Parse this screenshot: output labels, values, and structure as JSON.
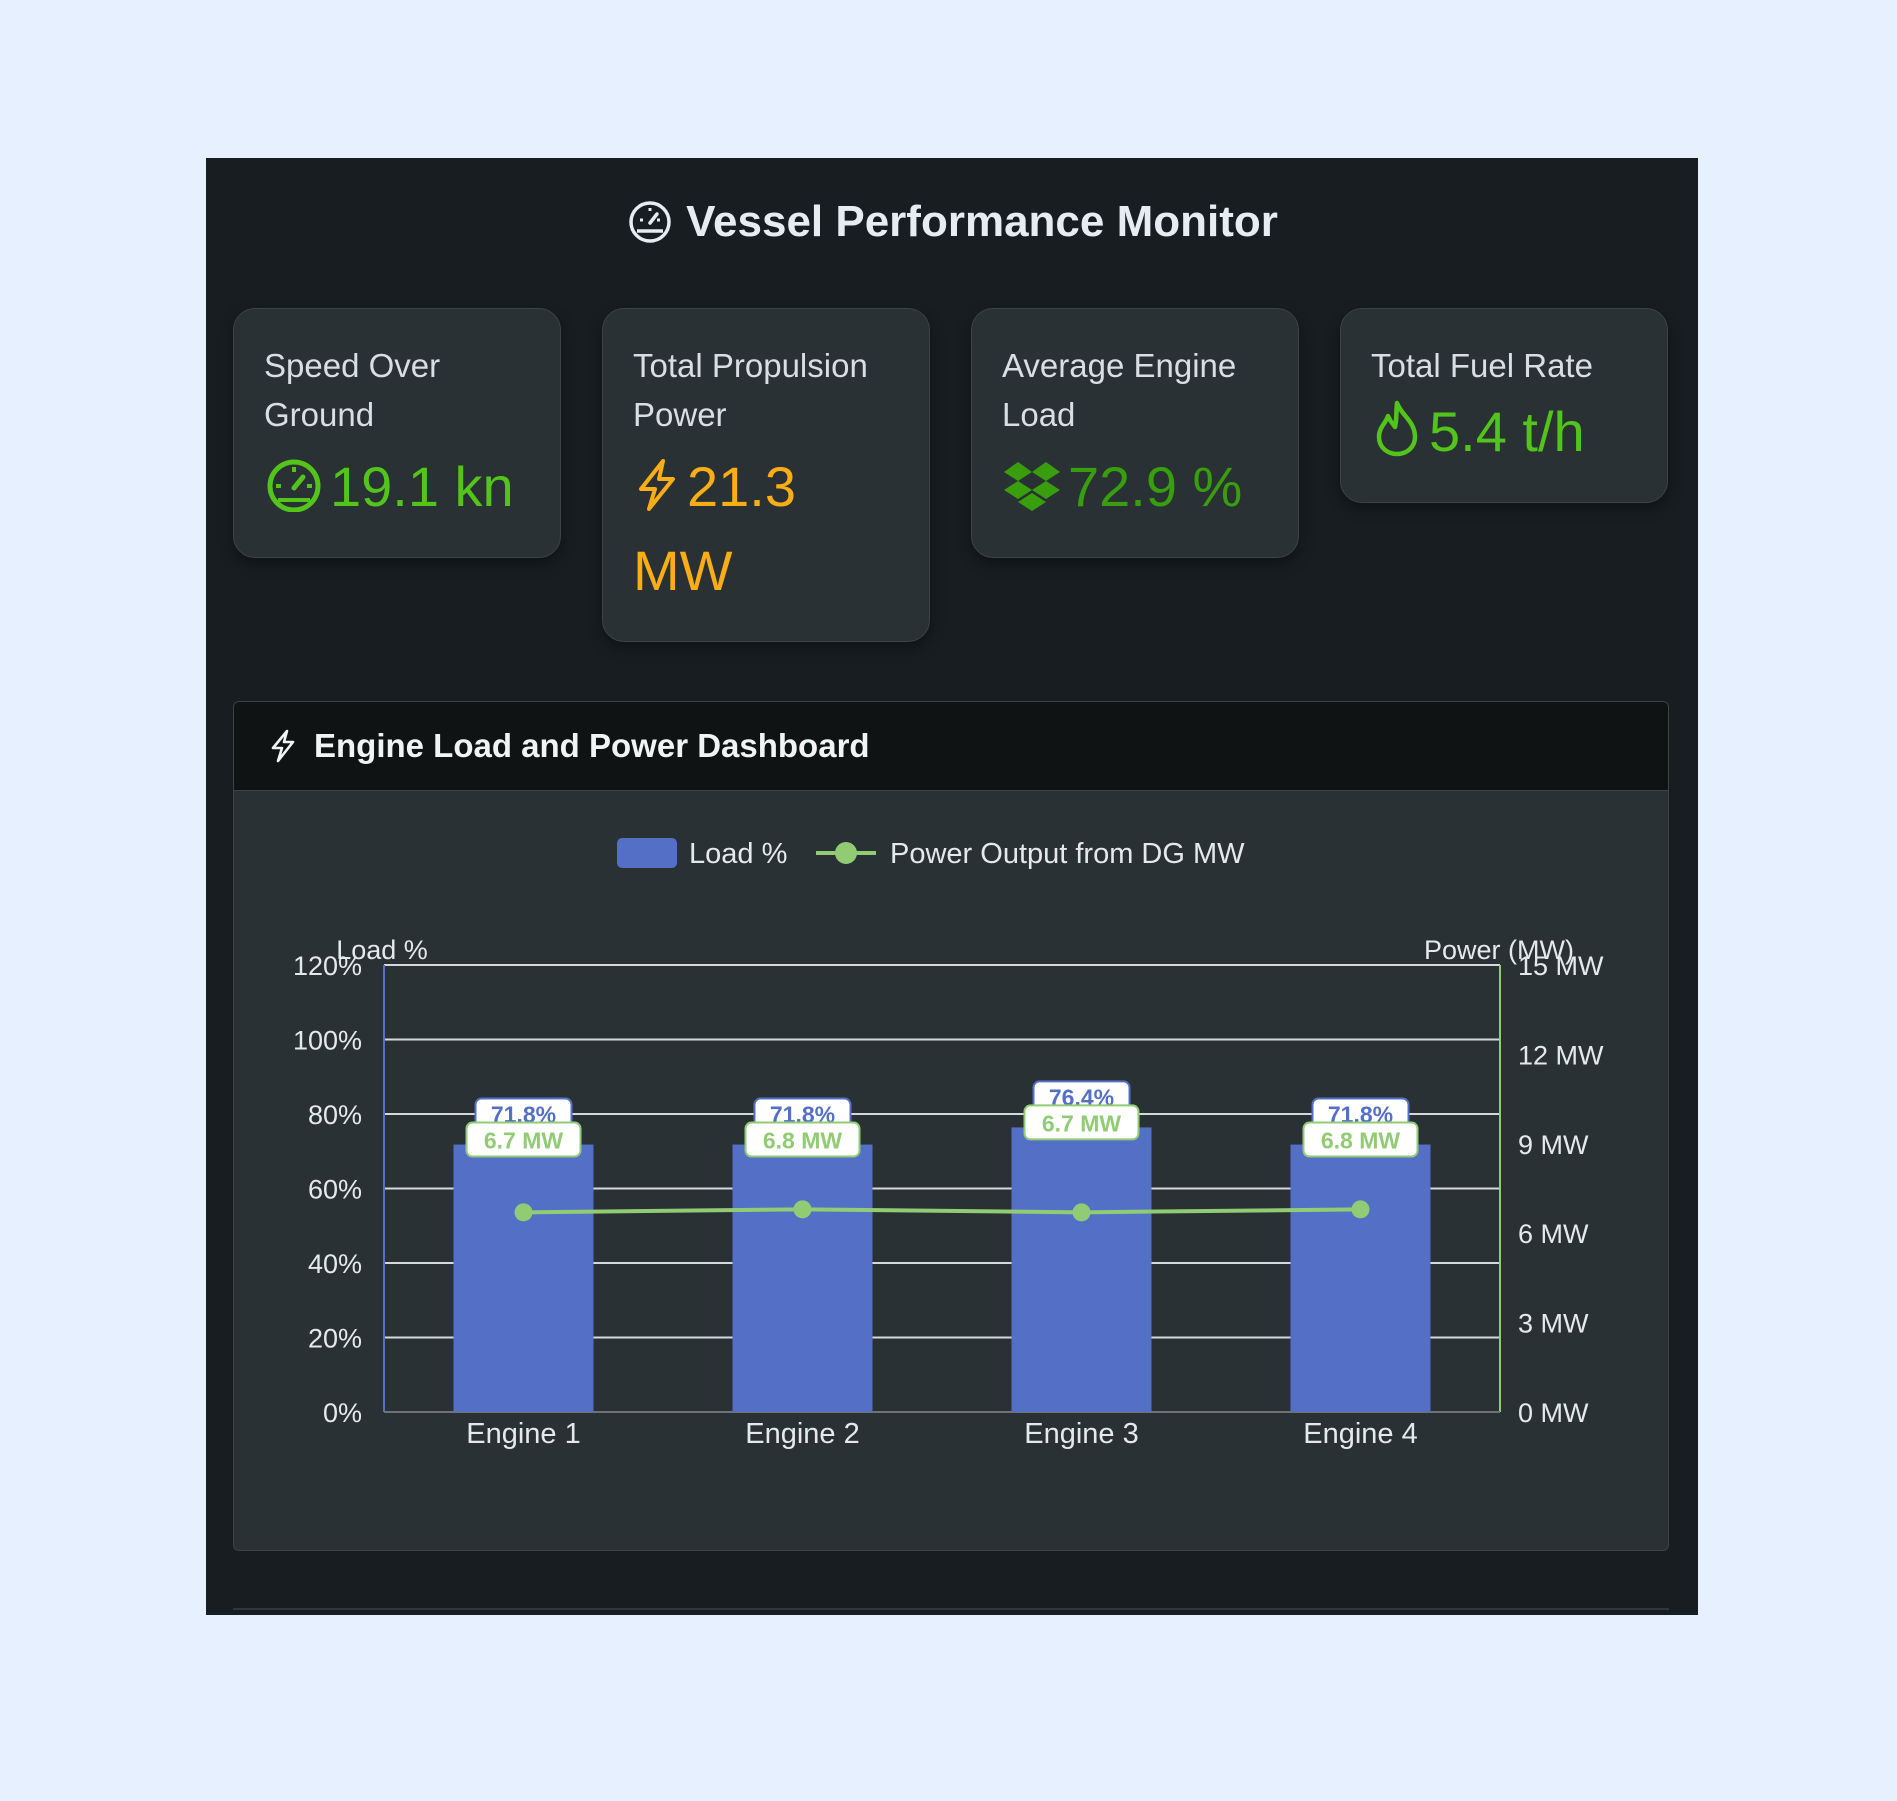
{
  "header": {
    "title": "Vessel Performance Monitor",
    "icon": "dashboard-icon"
  },
  "cards": [
    {
      "label": "Speed Over Ground",
      "value": "19.1 kn",
      "icon": "speedometer-icon",
      "color": "#52c41a"
    },
    {
      "label": "Total Propulsion Power",
      "value": "21.3 MW",
      "icon": "thunderbolt-icon",
      "color": "#faad14"
    },
    {
      "label": "Average Engine Load",
      "value": "72.9 %",
      "icon": "dropbox-icon",
      "color": "#389e0d"
    },
    {
      "label": "Total Fuel Rate",
      "value": "5.4 t/h",
      "icon": "fire-icon",
      "color": "#52c41a"
    }
  ],
  "chart_panel": {
    "title": "Engine Load and Power Dashboard",
    "icon": "thunderbolt-icon"
  },
  "chart_data": {
    "type": "bar",
    "categories": [
      "Engine 1",
      "Engine 2",
      "Engine 3",
      "Engine 4"
    ],
    "series": [
      {
        "name": "Load %",
        "type": "bar",
        "axis": "left",
        "values": [
          71.8,
          71.8,
          76.4,
          71.8
        ],
        "labels": [
          "71.8%",
          "71.8%",
          "76.4%",
          "71.8%"
        ],
        "color": "#5470c6"
      },
      {
        "name": "Power Output from DG MW",
        "type": "line",
        "axis": "right",
        "values": [
          6.7,
          6.8,
          6.7,
          6.8
        ],
        "labels": [
          "6.7 MW",
          "6.8 MW",
          "6.7 MW",
          "6.8 MW"
        ],
        "color": "#91cc75"
      }
    ],
    "ylabel_left": "Load %",
    "ylabel_right": "Power (MW)",
    "ylim_left": [
      0,
      120
    ],
    "ylim_right": [
      0,
      15
    ],
    "yticks_left": [
      "0%",
      "20%",
      "40%",
      "60%",
      "80%",
      "100%",
      "120%"
    ],
    "yticks_right": [
      "0 MW",
      "3 MW",
      "6 MW",
      "9 MW",
      "12 MW",
      "15 MW"
    ],
    "legend": "top-center",
    "grid": true
  }
}
